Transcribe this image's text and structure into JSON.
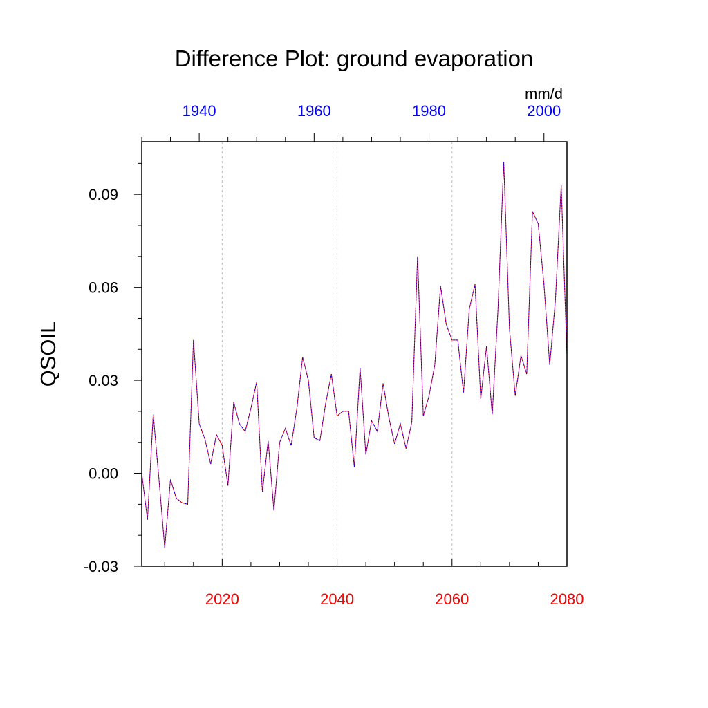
{
  "chart_data": {
    "type": "line",
    "title": "Difference Plot: ground evaporation",
    "ylabel": "QSOIL",
    "units": "mm/d",
    "xlabel": "",
    "colors": {
      "bottom_axis": "#ff0000",
      "top_axis": "#0000ff",
      "line_solid": "#ff0000",
      "line_dashed": "#0000ff",
      "grid": "#bbbbbb",
      "frame": "#000000"
    },
    "x_bottom": {
      "range": [
        2006,
        2080
      ],
      "ticks": [
        2020,
        2040,
        2060,
        2080
      ],
      "tick_labels": [
        "2020",
        "2040",
        "2060",
        "2080"
      ],
      "minor_step": 5
    },
    "x_top": {
      "range": [
        1930,
        2004
      ],
      "ticks": [
        1940,
        1960,
        1980,
        2000
      ],
      "tick_labels": [
        "1940",
        "1960",
        "1980",
        "2000"
      ],
      "minor_step": 5
    },
    "y": {
      "range": [
        -0.03,
        0.107
      ],
      "ticks": [
        -0.03,
        0.0,
        0.03,
        0.06,
        0.09
      ],
      "tick_labels": [
        "-0.03",
        "0.00",
        "0.03",
        "0.06",
        "0.09"
      ],
      "minor_step": 0.01
    },
    "grid_x": [
      2020,
      2040,
      2060
    ],
    "grid": "vertical dotted at bottom-axis major ticks",
    "series": [
      {
        "name": "difference",
        "x": [
          2006,
          2007,
          2008,
          2009,
          2010,
          2011,
          2012,
          2013,
          2014,
          2015,
          2016,
          2017,
          2018,
          2019,
          2020,
          2021,
          2022,
          2023,
          2024,
          2025,
          2026,
          2027,
          2028,
          2029,
          2030,
          2031,
          2032,
          2033,
          2034,
          2035,
          2036,
          2037,
          2038,
          2039,
          2040,
          2041,
          2042,
          2043,
          2044,
          2045,
          2046,
          2047,
          2048,
          2049,
          2050,
          2051,
          2052,
          2053,
          2054,
          2055,
          2056,
          2057,
          2058,
          2059,
          2060,
          2061,
          2062,
          2063,
          2064,
          2065,
          2066,
          2067,
          2068,
          2069,
          2070,
          2071,
          2072,
          2073,
          2074,
          2075,
          2076,
          2077,
          2078,
          2079,
          2080
        ],
        "values": [
          0.0,
          -0.015,
          0.019,
          -0.002,
          -0.024,
          -0.002,
          -0.008,
          -0.0095,
          -0.01,
          0.043,
          0.016,
          0.011,
          0.003,
          0.0125,
          0.009,
          -0.004,
          0.023,
          0.016,
          0.0135,
          0.021,
          0.0295,
          -0.006,
          0.0105,
          -0.012,
          0.01,
          0.0145,
          0.009,
          0.021,
          0.0375,
          0.03,
          0.0115,
          0.0105,
          0.0225,
          0.032,
          0.0185,
          0.02,
          0.02,
          0.002,
          0.034,
          0.006,
          0.017,
          0.0135,
          0.029,
          0.018,
          0.0095,
          0.016,
          0.008,
          0.0165,
          0.07,
          0.0185,
          0.025,
          0.035,
          0.0605,
          0.048,
          0.043,
          0.043,
          0.026,
          0.053,
          0.061,
          0.024,
          0.041,
          0.019,
          0.053,
          0.1005,
          0.0465,
          0.025,
          0.038,
          0.032,
          0.0845,
          0.0805,
          0.061,
          0.035,
          0.056,
          0.093,
          0.038
        ]
      }
    ]
  }
}
